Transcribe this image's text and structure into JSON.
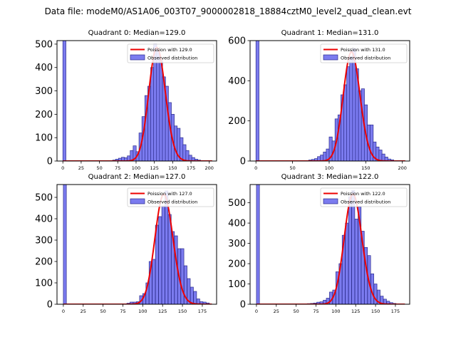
{
  "suptitle": "Data file: modeM0/AS1A06_003T07_9000002818_18884cztM0_level2_quad_clean.evt",
  "colors": {
    "bar_fill": "#7b7bef",
    "bar_edge": "#2c2c8c",
    "poisson_line": "#ee0000",
    "axes": "#000000"
  },
  "chart_data": [
    {
      "type": "bar",
      "title": "Quadrant 0: Median=129.0",
      "median": 129.0,
      "legend": {
        "line_label": "Poission with 129.0",
        "bar_label": "Observed distribution",
        "placement": "top-right"
      },
      "xlim": [
        -8,
        210
      ],
      "ylim": [
        0,
        515
      ],
      "xticks": [
        0,
        25,
        50,
        75,
        100,
        125,
        150,
        175,
        200
      ],
      "yticks": [
        0,
        100,
        200,
        300,
        400,
        500
      ],
      "bin_width": 4.2,
      "bars": [
        [
          0,
          515
        ],
        [
          68,
          4
        ],
        [
          72,
          8
        ],
        [
          76,
          12
        ],
        [
          80,
          16
        ],
        [
          84,
          14
        ],
        [
          88,
          22
        ],
        [
          92,
          45
        ],
        [
          96,
          65
        ],
        [
          100,
          40
        ],
        [
          104,
          120
        ],
        [
          108,
          190
        ],
        [
          112,
          280
        ],
        [
          116,
          320
        ],
        [
          120,
          400
        ],
        [
          124,
          500
        ],
        [
          128,
          470
        ],
        [
          132,
          430
        ],
        [
          136,
          360
        ],
        [
          140,
          320
        ],
        [
          144,
          250
        ],
        [
          148,
          200
        ],
        [
          152,
          150
        ],
        [
          156,
          140
        ],
        [
          160,
          100
        ],
        [
          164,
          70
        ],
        [
          168,
          45
        ],
        [
          172,
          25
        ],
        [
          176,
          15
        ],
        [
          180,
          8
        ],
        [
          184,
          4
        ],
        [
          188,
          2
        ]
      ]
    },
    {
      "type": "bar",
      "title": "Quadrant 1: Median=131.0",
      "median": 131.0,
      "legend": {
        "line_label": "Poission with 131.0",
        "bar_label": "Observed distribution",
        "placement": "top-right"
      },
      "xlim": [
        -8,
        210
      ],
      "ylim": [
        0,
        600
      ],
      "xticks": [
        0,
        50,
        100,
        150,
        200
      ],
      "yticks": [
        0,
        200,
        400,
        600
      ],
      "bin_width": 4.2,
      "bars": [
        [
          0,
          600
        ],
        [
          72,
          5
        ],
        [
          76,
          8
        ],
        [
          80,
          12
        ],
        [
          84,
          22
        ],
        [
          88,
          30
        ],
        [
          92,
          45
        ],
        [
          96,
          60
        ],
        [
          100,
          120
        ],
        [
          104,
          100
        ],
        [
          108,
          210
        ],
        [
          112,
          230
        ],
        [
          116,
          330
        ],
        [
          120,
          380
        ],
        [
          124,
          470
        ],
        [
          128,
          520
        ],
        [
          132,
          560
        ],
        [
          136,
          460
        ],
        [
          140,
          350
        ],
        [
          144,
          360
        ],
        [
          148,
          280
        ],
        [
          152,
          180
        ],
        [
          156,
          180
        ],
        [
          160,
          95
        ],
        [
          164,
          70
        ],
        [
          168,
          55
        ],
        [
          172,
          35
        ],
        [
          176,
          20
        ],
        [
          180,
          10
        ],
        [
          184,
          6
        ]
      ]
    },
    {
      "type": "bar",
      "title": "Quadrant 2: Median=127.0",
      "median": 127.0,
      "legend": {
        "line_label": "Poission with 127.0",
        "bar_label": "Observed distribution",
        "placement": "top-right"
      },
      "xlim": [
        -8,
        193
      ],
      "ylim": [
        0,
        560
      ],
      "xticks": [
        0,
        25,
        50,
        75,
        100,
        125,
        150,
        175
      ],
      "yticks": [
        0,
        100,
        200,
        300,
        400,
        500
      ],
      "bin_width": 3.8,
      "bars": [
        [
          0,
          560
        ],
        [
          80,
          5
        ],
        [
          84,
          10
        ],
        [
          88,
          10
        ],
        [
          92,
          12
        ],
        [
          96,
          40
        ],
        [
          100,
          50
        ],
        [
          104,
          100
        ],
        [
          108,
          200
        ],
        [
          112,
          210
        ],
        [
          116,
          370
        ],
        [
          120,
          410
        ],
        [
          124,
          460
        ],
        [
          128,
          530
        ],
        [
          132,
          420
        ],
        [
          136,
          340
        ],
        [
          140,
          320
        ],
        [
          144,
          260
        ],
        [
          148,
          260
        ],
        [
          152,
          180
        ],
        [
          156,
          120
        ],
        [
          160,
          80
        ],
        [
          164,
          60
        ],
        [
          168,
          25
        ],
        [
          172,
          12
        ],
        [
          176,
          10
        ],
        [
          180,
          6
        ]
      ]
    },
    {
      "type": "bar",
      "title": "Quadrant 3: Median=122.0",
      "median": 122.0,
      "legend": {
        "line_label": "Poission with 122.0",
        "bar_label": "Observed distribution",
        "placement": "top-right"
      },
      "xlim": [
        -8,
        193
      ],
      "ylim": [
        0,
        590
      ],
      "xticks": [
        0,
        25,
        50,
        75,
        100,
        125,
        150,
        175
      ],
      "yticks": [
        0,
        100,
        200,
        300,
        400,
        500
      ],
      "bin_width": 3.8,
      "bars": [
        [
          0,
          590
        ],
        [
          64,
          3
        ],
        [
          68,
          4
        ],
        [
          72,
          6
        ],
        [
          76,
          10
        ],
        [
          80,
          12
        ],
        [
          84,
          20
        ],
        [
          88,
          30
        ],
        [
          92,
          60
        ],
        [
          96,
          70
        ],
        [
          100,
          160
        ],
        [
          104,
          200
        ],
        [
          108,
          340
        ],
        [
          112,
          400
        ],
        [
          116,
          530
        ],
        [
          120,
          560
        ],
        [
          124,
          420
        ],
        [
          128,
          480
        ],
        [
          132,
          360
        ],
        [
          136,
          280
        ],
        [
          140,
          240
        ],
        [
          144,
          150
        ],
        [
          148,
          100
        ],
        [
          152,
          70
        ],
        [
          156,
          40
        ],
        [
          160,
          25
        ],
        [
          164,
          15
        ],
        [
          168,
          8
        ],
        [
          172,
          4
        ]
      ]
    }
  ]
}
